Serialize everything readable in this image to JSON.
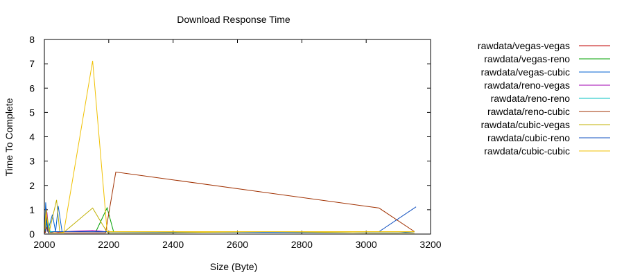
{
  "chart_data": {
    "type": "line",
    "title": "Download Response Time",
    "xlabel": "Size (Byte)",
    "ylabel": "Time To Complete",
    "xlim": [
      2000,
      3200
    ],
    "ylim": [
      0,
      8
    ],
    "xticks": [
      2000,
      2200,
      2400,
      2600,
      2800,
      3000,
      3200
    ],
    "yticks": [
      0,
      1,
      2,
      3,
      4,
      5,
      6,
      7,
      8
    ],
    "grid": false,
    "legend_position": "right-outside",
    "series": [
      {
        "name": "rawdata/vegas-vegas",
        "color": "#c00000",
        "points": [
          [
            2002,
            0.05
          ],
          [
            2006,
            1.05
          ],
          [
            2012,
            0.1
          ],
          [
            2030,
            0.1
          ],
          [
            2045,
            0.1
          ],
          [
            2150,
            0.1
          ],
          [
            2190,
            0.1
          ]
        ]
      },
      {
        "name": "rawdata/vegas-reno",
        "color": "#00a000",
        "points": [
          [
            2002,
            0.1
          ],
          [
            2008,
            0.5
          ],
          [
            2015,
            0.1
          ],
          [
            2050,
            0.1
          ],
          [
            2160,
            0.1
          ],
          [
            2195,
            1.08
          ],
          [
            2215,
            0.1
          ],
          [
            3150,
            0.1
          ]
        ]
      },
      {
        "name": "rawdata/vegas-cubic",
        "color": "#0060d0",
        "points": [
          [
            2001,
            0.3
          ],
          [
            2004,
            1.3
          ],
          [
            2010,
            0.1
          ],
          [
            2025,
            0.8
          ],
          [
            2035,
            0.1
          ],
          [
            2043,
            1.15
          ],
          [
            2055,
            0.1
          ],
          [
            3100,
            0.05
          ],
          [
            3150,
            0.1
          ]
        ]
      },
      {
        "name": "rawdata/reno-vegas",
        "color": "#a000b0",
        "points": [
          [
            2003,
            0.1
          ],
          [
            2008,
            0.9
          ],
          [
            2014,
            0.05
          ],
          [
            2030,
            0.05
          ],
          [
            2060,
            0.1
          ],
          [
            2150,
            0.15
          ],
          [
            2190,
            0.1
          ]
        ]
      },
      {
        "name": "rawdata/reno-reno",
        "color": "#00c0c0",
        "points": [
          [
            2002,
            0.15
          ],
          [
            2010,
            0.6
          ],
          [
            2018,
            0.1
          ],
          [
            2040,
            0.1
          ],
          [
            2060,
            0.1
          ],
          [
            3150,
            0.1
          ]
        ]
      },
      {
        "name": "rawdata/reno-cubic",
        "color": "#a03000",
        "points": [
          [
            2003,
            0.05
          ],
          [
            2008,
            0.3
          ],
          [
            2012,
            0.05
          ],
          [
            2030,
            0.05
          ],
          [
            2190,
            0.05
          ],
          [
            2222,
            2.55
          ],
          [
            3040,
            1.07
          ],
          [
            3150,
            0.1
          ]
        ]
      },
      {
        "name": "rawdata/cubic-vegas",
        "color": "#c0b000",
        "points": [
          [
            2001,
            0.1
          ],
          [
            2005,
            1.0
          ],
          [
            2015,
            0.1
          ],
          [
            2038,
            1.4
          ],
          [
            2048,
            0.05
          ],
          [
            2063,
            0.1
          ],
          [
            2150,
            1.07
          ],
          [
            2196,
            0.05
          ],
          [
            2350,
            0.05
          ],
          [
            2700,
            0.1
          ],
          [
            3000,
            0.05
          ],
          [
            3150,
            0.05
          ]
        ]
      },
      {
        "name": "rawdata/cubic-reno",
        "color": "#1050c0",
        "points": [
          [
            2003,
            0.1
          ],
          [
            2007,
            0.7
          ],
          [
            2012,
            0.05
          ],
          [
            2030,
            0.1
          ],
          [
            2060,
            0.1
          ],
          [
            3040,
            0.1
          ],
          [
            3155,
            1.12
          ]
        ]
      },
      {
        "name": "rawdata/cubic-cubic",
        "color": "#f0c000",
        "points": [
          [
            2002,
            0.2
          ],
          [
            2005,
            0.9
          ],
          [
            2015,
            0.05
          ],
          [
            2035,
            0.05
          ],
          [
            2060,
            0.05
          ],
          [
            2150,
            7.12
          ],
          [
            2195,
            0.1
          ],
          [
            2220,
            0.1
          ],
          [
            3150,
            0.1
          ]
        ]
      }
    ]
  }
}
